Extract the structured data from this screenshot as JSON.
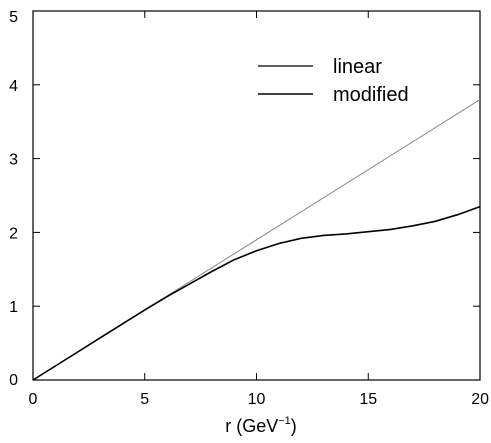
{
  "chart_data": {
    "type": "line",
    "title": "",
    "xlabel": "r (GeV",
    "xlabel_sup": "−1",
    "xlabel_close": ")",
    "ylabel": "",
    "xlim": [
      0,
      20
    ],
    "ylim": [
      0,
      5
    ],
    "x_ticks": [
      0,
      5,
      10,
      15,
      20
    ],
    "y_ticks": [
      0,
      1,
      2,
      3,
      4,
      5
    ],
    "x_tick_labels": [
      "0",
      "5",
      "10",
      "15",
      "20"
    ],
    "y_tick_labels": [
      "0",
      "1",
      "2",
      "3",
      "4",
      "5"
    ],
    "grid": false,
    "legend": "top-right",
    "series": [
      {
        "name": "linear",
        "color": "#888888",
        "x": [
          0,
          20
        ],
        "y": [
          0,
          3.8
        ]
      },
      {
        "name": "modified",
        "color": "#000000",
        "x": [
          0,
          1,
          2,
          3,
          4,
          5,
          6,
          7,
          8,
          9,
          10,
          11,
          12,
          13,
          14,
          15,
          16,
          17,
          18,
          19,
          20
        ],
        "y": [
          0,
          0.19,
          0.38,
          0.57,
          0.76,
          0.95,
          1.13,
          1.3,
          1.47,
          1.63,
          1.75,
          1.85,
          1.92,
          1.96,
          1.98,
          2.01,
          2.04,
          2.09,
          2.15,
          2.24,
          2.35
        ]
      }
    ]
  }
}
